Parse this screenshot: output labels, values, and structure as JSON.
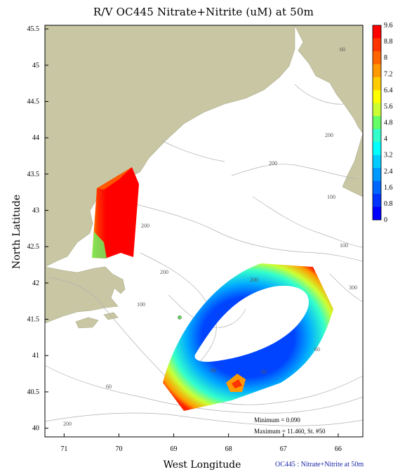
{
  "title": "R/V OC445 Nitrate+Nitrite (uM) at 50m",
  "axes": {
    "xlabel": "West Longitude",
    "ylabel": "North Latitude",
    "x_ticks": [
      "71",
      "70",
      "69",
      "68",
      "67",
      "66"
    ],
    "y_ticks": [
      "45.5",
      "45",
      "44.5",
      "44",
      "43.5",
      "43",
      "42.5",
      "42",
      "41.5",
      "41",
      "40.5",
      "40"
    ],
    "x_range_west": [
      71.35,
      65.55
    ],
    "y_range": [
      39.88,
      45.55
    ]
  },
  "colorbar": {
    "labels": [
      "9.6",
      "8.8",
      "8",
      "7.2",
      "6.4",
      "5.6",
      "4.8",
      "4",
      "3.2",
      "2.4",
      "1.6",
      "0.8",
      "0"
    ],
    "colors": [
      "#ff0000",
      "#ff3300",
      "#ff6600",
      "#ff9900",
      "#ffcc00",
      "#ffff00",
      "#ccff33",
      "#66ff66",
      "#33ffcc",
      "#00ffff",
      "#00ccff",
      "#0099ff",
      "#0066ff",
      "#0033ff",
      "#0000ff"
    ]
  },
  "contour_labels": [
    "60",
    "200",
    "200",
    "100",
    "200",
    "100",
    "60",
    "100",
    "300",
    "60",
    "60",
    "200",
    "200",
    "60",
    "200"
  ],
  "stats": {
    "minimum": "Minimum = 0.090",
    "maximum": "Maximum = 11.460, St. #50"
  },
  "footer": "OC445 : Nitrate+Nitrite at 50m",
  "colors": {
    "land": "#c9c7a3",
    "water": "#ffffff",
    "contour": "#b0b0b0"
  }
}
